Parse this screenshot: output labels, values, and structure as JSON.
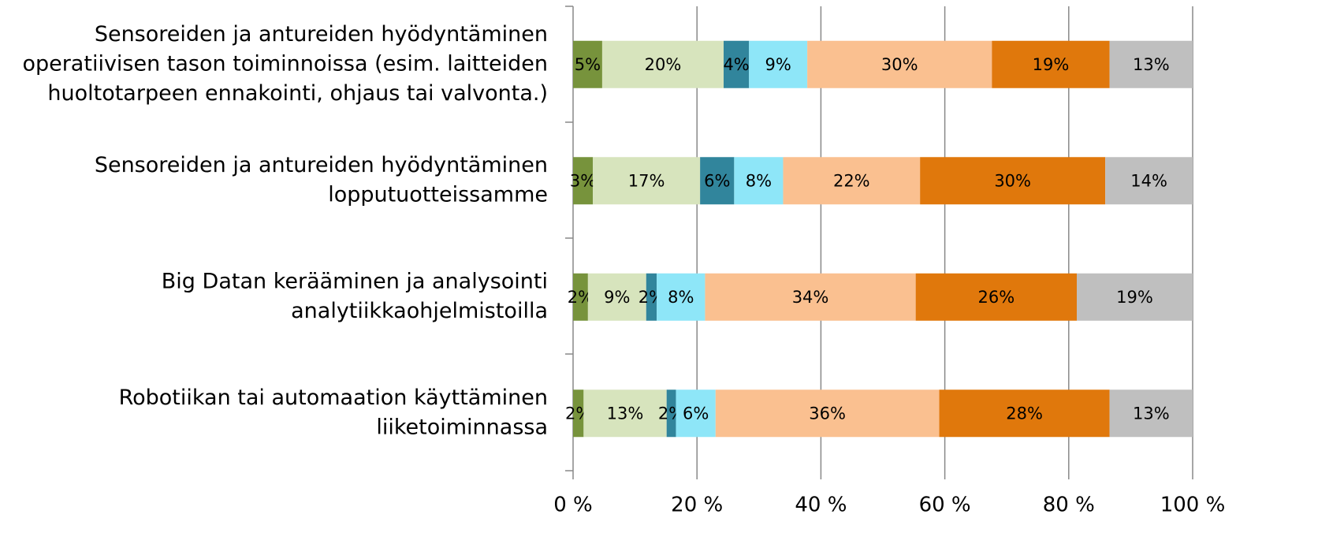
{
  "chart_data": {
    "type": "stacked-bar-horizontal",
    "categories": [
      [
        "Sensoreiden ja antureiden hyödyntäminen",
        "operatiivisen tason toiminnoissa (esim. laitteiden",
        "huoltotarpeen ennakointi, ohjaus tai valvonta.)"
      ],
      [
        "Sensoreiden ja antureiden hyödyntäminen",
        "lopputuotteissamme"
      ],
      [
        "Big Datan kerääminen ja analysointi",
        "analytiikkaohjelmistoilla"
      ],
      [
        "Robotiikan tai automaation käyttäminen",
        "liiketoiminnassa"
      ]
    ],
    "series": [
      {
        "color": "#77933c",
        "values": [
          4.7,
          3.2,
          2.4,
          1.7
        ],
        "value_labels": [
          "5%",
          "3%",
          "2%",
          "2%"
        ]
      },
      {
        "color": "#d7e4bd",
        "values": [
          19.6,
          17.3,
          9.4,
          13.4
        ],
        "value_labels": [
          "20%",
          "17%",
          "9%",
          "13%"
        ]
      },
      {
        "color": "#31859c",
        "values": [
          4.1,
          5.5,
          1.7,
          1.5
        ],
        "value_labels": [
          "4%",
          "6%",
          "2%",
          "2%"
        ]
      },
      {
        "color": "#8ee6f8",
        "values": [
          9.4,
          7.9,
          7.8,
          6.4
        ],
        "value_labels": [
          "9%",
          "8%",
          "8%",
          "6%"
        ]
      },
      {
        "color": "#fac090",
        "values": [
          29.8,
          22.1,
          34.0,
          36.1
        ],
        "value_labels": [
          "30%",
          "22%",
          "34%",
          "36%"
        ]
      },
      {
        "color": "#e0780c",
        "values": [
          19.0,
          29.9,
          26.0,
          27.5
        ],
        "value_labels": [
          "19%",
          "30%",
          "26%",
          "28%"
        ]
      },
      {
        "color": "#bfbfbf",
        "values": [
          13.4,
          14.1,
          18.7,
          13.4
        ],
        "value_labels": [
          "13%",
          "14%",
          "19%",
          "13%"
        ]
      }
    ],
    "xlim": [
      0,
      100
    ],
    "xticks": [
      {
        "value": 0,
        "label": "0 %"
      },
      {
        "value": 20,
        "label": "20 %"
      },
      {
        "value": 40,
        "label": "40 %"
      },
      {
        "value": 60,
        "label": "60 %"
      },
      {
        "value": 80,
        "label": "80 %"
      },
      {
        "value": 100,
        "label": "100 %"
      }
    ],
    "grid": true
  }
}
